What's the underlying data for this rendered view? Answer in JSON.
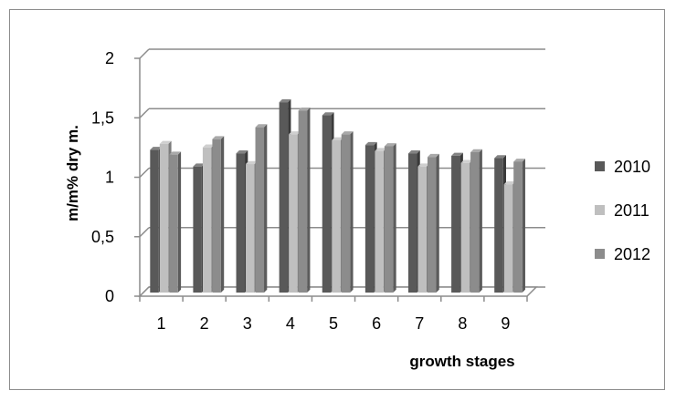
{
  "chart_data": {
    "type": "bar",
    "title": "",
    "xlabel": "growth stages",
    "ylabel": "m/m% dry m.",
    "categories": [
      "1",
      "2",
      "3",
      "4",
      "5",
      "6",
      "7",
      "8",
      "9"
    ],
    "ylim": [
      0,
      2
    ],
    "yticks": [
      "0",
      "0,5",
      "1",
      "1,5",
      "2"
    ],
    "grid": true,
    "legend_position": "right",
    "series": [
      {
        "name": "2010",
        "color": "#595959",
        "values": [
          1.2,
          1.06,
          1.17,
          1.6,
          1.49,
          1.24,
          1.17,
          1.15,
          1.13
        ]
      },
      {
        "name": "2011",
        "color": "#bfbfbf",
        "values": [
          1.25,
          1.22,
          1.08,
          1.33,
          1.28,
          1.19,
          1.06,
          1.09,
          0.91
        ]
      },
      {
        "name": "2012",
        "color": "#8c8c8c",
        "values": [
          1.16,
          1.29,
          1.39,
          1.53,
          1.33,
          1.23,
          1.14,
          1.18,
          1.1
        ]
      }
    ]
  }
}
